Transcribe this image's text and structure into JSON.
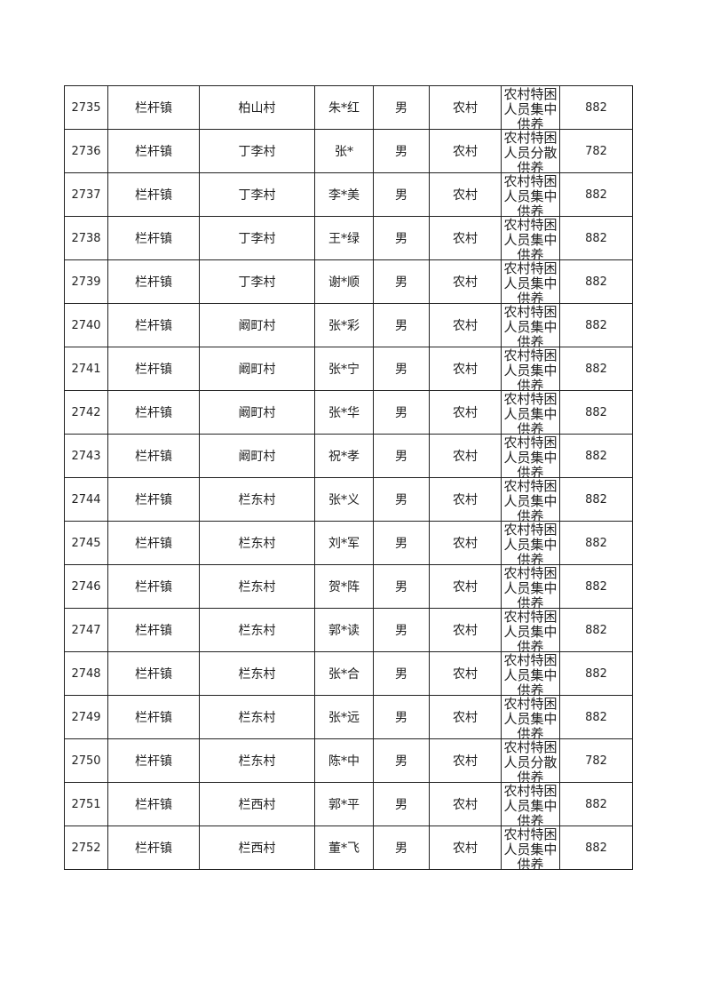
{
  "rows": [
    {
      "id": "2735",
      "town": "栏杆镇",
      "village": "柏山村",
      "name": "朱*红",
      "gender": "男",
      "type": "农村",
      "category": "农村特困人员集中供养",
      "amount": "882"
    },
    {
      "id": "2736",
      "town": "栏杆镇",
      "village": "丁李村",
      "name": "张*",
      "gender": "男",
      "type": "农村",
      "category": "农村特困人员分散供养",
      "amount": "782"
    },
    {
      "id": "2737",
      "town": "栏杆镇",
      "village": "丁李村",
      "name": "李*美",
      "gender": "男",
      "type": "农村",
      "category": "农村特困人员集中供养",
      "amount": "882"
    },
    {
      "id": "2738",
      "town": "栏杆镇",
      "village": "丁李村",
      "name": "王*绿",
      "gender": "男",
      "type": "农村",
      "category": "农村特困人员集中供养",
      "amount": "882"
    },
    {
      "id": "2739",
      "town": "栏杆镇",
      "village": "丁李村",
      "name": "谢*顺",
      "gender": "男",
      "type": "农村",
      "category": "农村特困人员集中供养",
      "amount": "882"
    },
    {
      "id": "2740",
      "town": "栏杆镇",
      "village": "阚町村",
      "name": "张*彩",
      "gender": "男",
      "type": "农村",
      "category": "农村特困人员集中供养",
      "amount": "882"
    },
    {
      "id": "2741",
      "town": "栏杆镇",
      "village": "阚町村",
      "name": "张*宁",
      "gender": "男",
      "type": "农村",
      "category": "农村特困人员集中供养",
      "amount": "882"
    },
    {
      "id": "2742",
      "town": "栏杆镇",
      "village": "阚町村",
      "name": "张*华",
      "gender": "男",
      "type": "农村",
      "category": "农村特困人员集中供养",
      "amount": "882"
    },
    {
      "id": "2743",
      "town": "栏杆镇",
      "village": "阚町村",
      "name": "祝*孝",
      "gender": "男",
      "type": "农村",
      "category": "农村特困人员集中供养",
      "amount": "882"
    },
    {
      "id": "2744",
      "town": "栏杆镇",
      "village": "栏东村",
      "name": "张*义",
      "gender": "男",
      "type": "农村",
      "category": "农村特困人员集中供养",
      "amount": "882"
    },
    {
      "id": "2745",
      "town": "栏杆镇",
      "village": "栏东村",
      "name": "刘*军",
      "gender": "男",
      "type": "农村",
      "category": "农村特困人员集中供养",
      "amount": "882"
    },
    {
      "id": "2746",
      "town": "栏杆镇",
      "village": "栏东村",
      "name": "贺*阵",
      "gender": "男",
      "type": "农村",
      "category": "农村特困人员集中供养",
      "amount": "882"
    },
    {
      "id": "2747",
      "town": "栏杆镇",
      "village": "栏东村",
      "name": "郭*读",
      "gender": "男",
      "type": "农村",
      "category": "农村特困人员集中供养",
      "amount": "882"
    },
    {
      "id": "2748",
      "town": "栏杆镇",
      "village": "栏东村",
      "name": "张*合",
      "gender": "男",
      "type": "农村",
      "category": "农村特困人员集中供养",
      "amount": "882"
    },
    {
      "id": "2749",
      "town": "栏杆镇",
      "village": "栏东村",
      "name": "张*远",
      "gender": "男",
      "type": "农村",
      "category": "农村特困人员集中供养",
      "amount": "882"
    },
    {
      "id": "2750",
      "town": "栏杆镇",
      "village": "栏东村",
      "name": "陈*中",
      "gender": "男",
      "type": "农村",
      "category": "农村特困人员分散供养",
      "amount": "782"
    },
    {
      "id": "2751",
      "town": "栏杆镇",
      "village": "栏西村",
      "name": "郭*平",
      "gender": "男",
      "type": "农村",
      "category": "农村特困人员集中供养",
      "amount": "882"
    },
    {
      "id": "2752",
      "town": "栏杆镇",
      "village": "栏西村",
      "name": "董*飞",
      "gender": "男",
      "type": "农村",
      "category": "农村特困人员集中供养",
      "amount": "882"
    }
  ]
}
